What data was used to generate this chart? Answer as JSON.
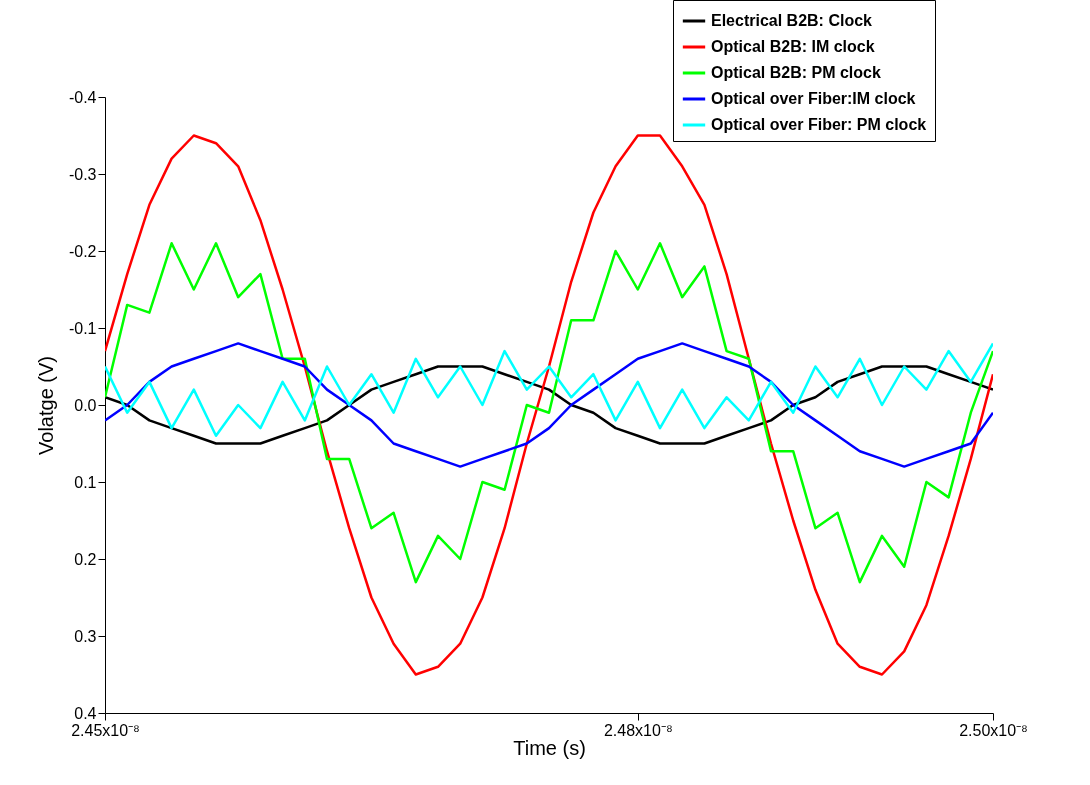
{
  "chart_data": {
    "type": "line",
    "xlabel": "Time (s)",
    "ylabel": "Volatge (V)",
    "x": [
      2.45e-08,
      2.45125e-08,
      2.4525e-08,
      2.45375e-08,
      2.455e-08,
      2.45625e-08,
      2.4575e-08,
      2.45875e-08,
      2.46e-08,
      2.46125e-08,
      2.4625e-08,
      2.46375e-08,
      2.465e-08,
      2.46625e-08,
      2.4675e-08,
      2.46875e-08,
      2.47e-08,
      2.47125e-08,
      2.4725e-08,
      2.47375e-08,
      2.475e-08,
      2.47625e-08,
      2.4775e-08,
      2.47875e-08,
      2.48e-08,
      2.48125e-08,
      2.4825e-08,
      2.48375e-08,
      2.485e-08,
      2.48625e-08,
      2.4875e-08,
      2.48875e-08,
      2.49e-08,
      2.49125e-08,
      2.4925e-08,
      2.49375e-08,
      2.495e-08,
      2.49625e-08,
      2.4975e-08,
      2.49875e-08,
      2.5e-08
    ],
    "series": [
      {
        "name": "Electrical B2B: Clock",
        "color": "#000000",
        "values": [
          -0.01,
          0.0,
          0.02,
          0.03,
          0.04,
          0.05,
          0.05,
          0.05,
          0.04,
          0.03,
          0.02,
          0.0,
          -0.02,
          -0.03,
          -0.04,
          -0.05,
          -0.05,
          -0.05,
          -0.04,
          -0.03,
          -0.02,
          0.0,
          0.01,
          0.03,
          0.04,
          0.05,
          0.05,
          0.05,
          0.04,
          0.03,
          0.02,
          0.0,
          -0.01,
          -0.03,
          -0.04,
          -0.05,
          -0.05,
          -0.05,
          -0.04,
          -0.03,
          -0.02
        ]
      },
      {
        "name": "Optical B2B: IM clock",
        "color": "#ff0000",
        "values": [
          -0.07,
          -0.17,
          -0.26,
          -0.32,
          -0.35,
          -0.34,
          -0.31,
          -0.24,
          -0.15,
          -0.05,
          0.06,
          0.16,
          0.25,
          0.31,
          0.35,
          0.34,
          0.31,
          0.25,
          0.16,
          0.05,
          -0.05,
          -0.16,
          -0.25,
          -0.31,
          -0.35,
          -0.35,
          -0.31,
          -0.26,
          -0.17,
          -0.06,
          0.05,
          0.15,
          0.24,
          0.31,
          0.34,
          0.35,
          0.32,
          0.26,
          0.17,
          0.07,
          -0.04
        ]
      },
      {
        "name": "Optical B2B: PM clock",
        "color": "#00ff00",
        "values": [
          -0.01,
          -0.13,
          -0.12,
          -0.21,
          -0.15,
          -0.21,
          -0.14,
          -0.17,
          -0.06,
          -0.06,
          0.07,
          0.07,
          0.16,
          0.14,
          0.23,
          0.17,
          0.2,
          0.1,
          0.11,
          0.0,
          0.01,
          -0.11,
          -0.11,
          -0.2,
          -0.15,
          -0.21,
          -0.14,
          -0.18,
          -0.07,
          -0.06,
          0.06,
          0.06,
          0.16,
          0.14,
          0.23,
          0.17,
          0.21,
          0.1,
          0.12,
          0.01,
          -0.07
        ]
      },
      {
        "name": "Optical over Fiber:IM clock",
        "color": "#0000ff",
        "values": [
          0.02,
          0.0,
          -0.03,
          -0.05,
          -0.06,
          -0.07,
          -0.08,
          -0.07,
          -0.06,
          -0.05,
          -0.02,
          0.0,
          0.02,
          0.05,
          0.06,
          0.07,
          0.08,
          0.07,
          0.06,
          0.05,
          0.03,
          0.0,
          -0.02,
          -0.04,
          -0.06,
          -0.07,
          -0.08,
          -0.07,
          -0.06,
          -0.05,
          -0.03,
          0.0,
          0.02,
          0.04,
          0.06,
          0.07,
          0.08,
          0.07,
          0.06,
          0.05,
          0.01
        ]
      },
      {
        "name": "Optical over Fiber: PM clock",
        "color": "#00ffff",
        "values": [
          -0.05,
          0.01,
          -0.03,
          0.03,
          -0.02,
          0.04,
          0.0,
          0.03,
          -0.03,
          0.02,
          -0.05,
          0.0,
          -0.04,
          0.01,
          -0.06,
          -0.01,
          -0.05,
          0.0,
          -0.07,
          -0.02,
          -0.05,
          -0.01,
          -0.04,
          0.02,
          -0.03,
          0.03,
          -0.02,
          0.03,
          -0.01,
          0.02,
          -0.03,
          0.01,
          -0.05,
          -0.01,
          -0.06,
          0.0,
          -0.05,
          -0.02,
          -0.07,
          -0.03,
          -0.08
        ]
      }
    ],
    "xlim": [
      2.45e-08,
      2.5e-08
    ],
    "xticks": [
      {
        "value": 2.45e-08,
        "label": "2.45x10⁻⁸"
      },
      {
        "value": 2.48e-08,
        "label": "2.48x10⁻⁸"
      },
      {
        "value": 2.5e-08,
        "label": "2.50x10⁻⁸"
      }
    ],
    "ylim": [
      0.4,
      -0.4
    ],
    "yticks": [
      -0.4,
      -0.3,
      -0.2,
      -0.1,
      {
        "value": 0,
        "label": "0.0"
      },
      0.1,
      0.2,
      0.3,
      0.4
    ],
    "grid": false,
    "legend": "top right",
    "line_style": "solid"
  }
}
